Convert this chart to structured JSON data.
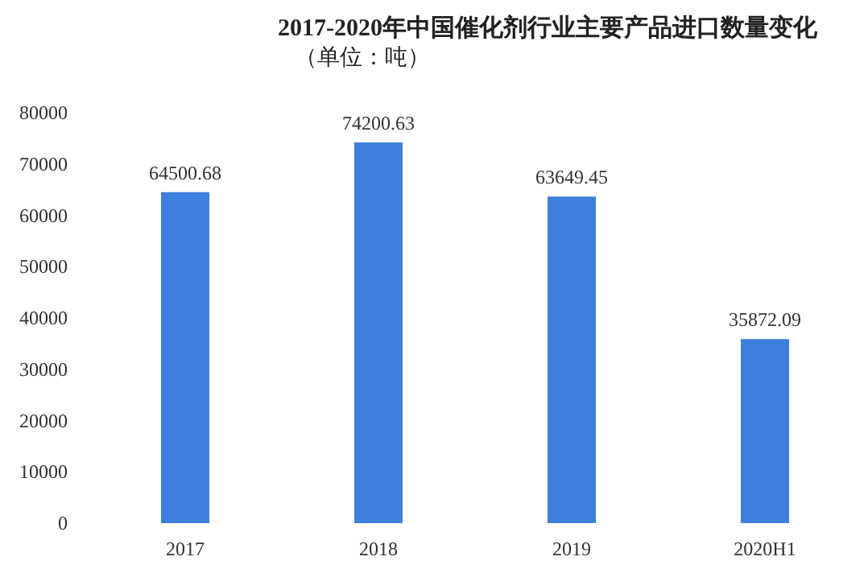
{
  "chart_data": {
    "type": "bar",
    "title": "2017-2020年中国催化剂行业主要产品进口数量变化",
    "subtitle": "（单位：吨）",
    "categories": [
      "2017",
      "2018",
      "2019",
      "2020H1"
    ],
    "values": [
      64500.68,
      74200.63,
      63649.45,
      35872.09
    ],
    "color": "#3d7fdc",
    "data_labels": true,
    "ylim": [
      0,
      80000
    ],
    "yticks": [
      0,
      10000,
      20000,
      30000,
      40000,
      50000,
      60000,
      70000,
      80000
    ]
  }
}
